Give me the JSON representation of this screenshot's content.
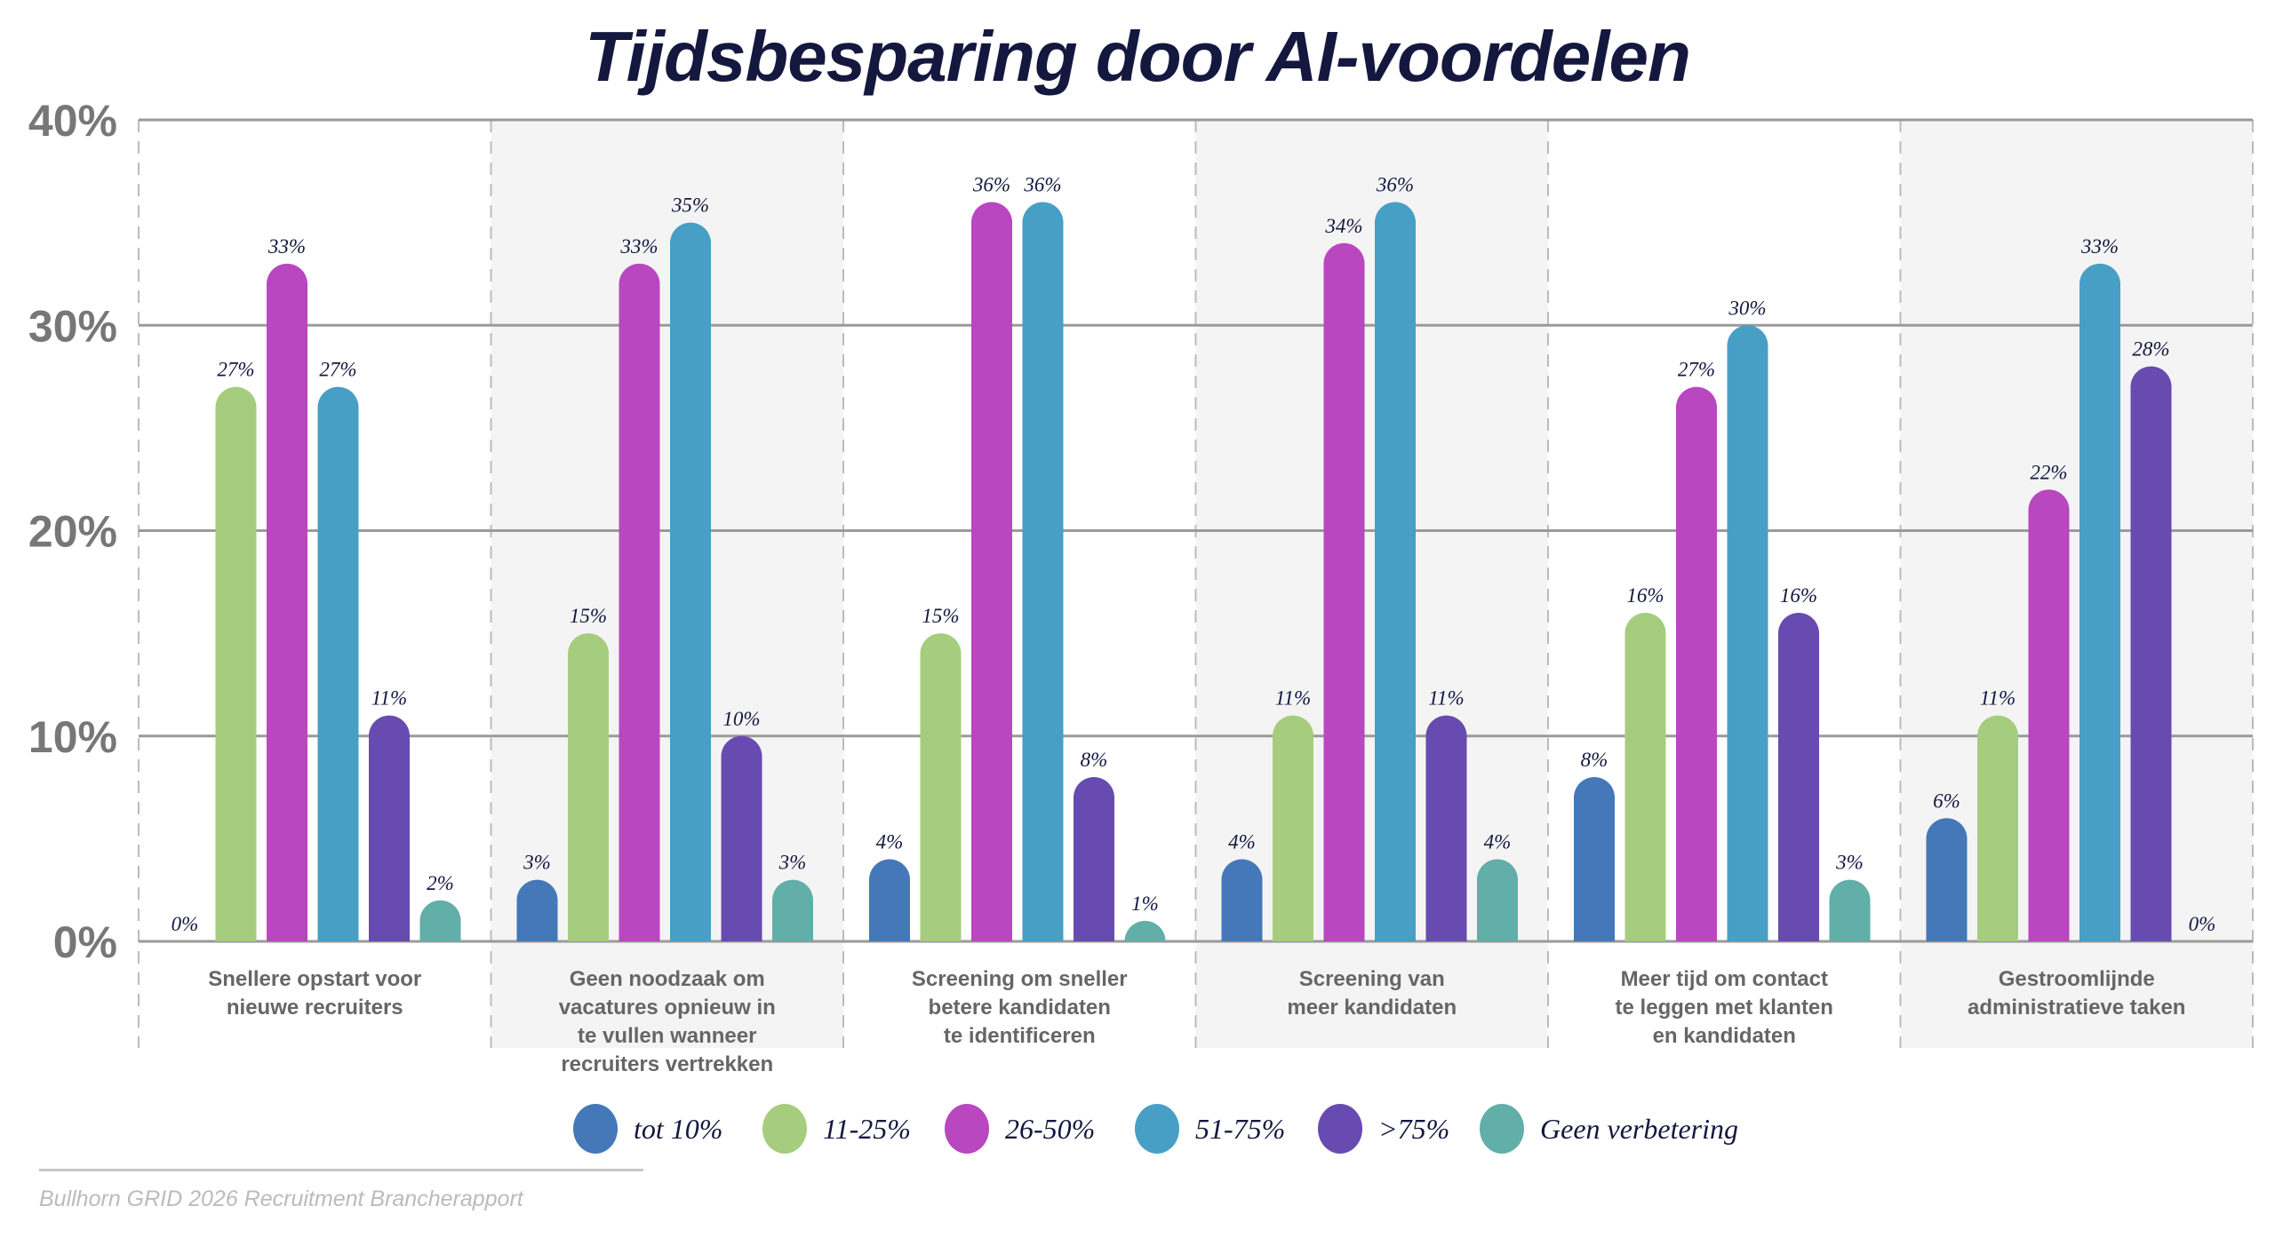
{
  "chart_data": {
    "type": "bar",
    "title": "Tijdsbesparing door AI-voordelen",
    "xlabel": "",
    "ylabel": "",
    "ylim": [
      0,
      40
    ],
    "yticks": [
      "0%",
      "10%",
      "20%",
      "30%",
      "40%"
    ],
    "ytick_values": [
      0,
      10,
      20,
      30,
      40
    ],
    "grid": true,
    "legend_position": "bottom",
    "categories": [
      [
        "Snellere opstart voor",
        "nieuwe recruiters"
      ],
      [
        "Geen noodzaak om",
        "vacatures opnieuw in",
        "te vullen wanneer",
        "recruiters vertrekken"
      ],
      [
        "Screening om sneller",
        "betere kandidaten",
        "te identificeren"
      ],
      [
        "Screening van",
        "meer kandidaten"
      ],
      [
        "Meer tijd om contact",
        "te leggen met klanten",
        "en kandidaten"
      ],
      [
        "Gestroomlijnde",
        "administratieve taken"
      ]
    ],
    "series": [
      {
        "name": "tot 10%",
        "color": "#4478b8",
        "values": [
          0,
          3,
          4,
          4,
          8,
          6
        ]
      },
      {
        "name": "11-25%",
        "color": "#a6cd7d",
        "values": [
          27,
          15,
          15,
          11,
          16,
          11
        ]
      },
      {
        "name": "26-50%",
        "color": "#b847c0",
        "values": [
          33,
          33,
          36,
          34,
          27,
          22
        ]
      },
      {
        "name": "51-75%",
        "color": "#479fc5",
        "values": [
          27,
          35,
          36,
          36,
          30,
          33
        ]
      },
      {
        "name": ">75%",
        "color": "#674bb0",
        "values": [
          11,
          10,
          8,
          11,
          16,
          28
        ]
      },
      {
        "name": "Geen verbetering",
        "color": "#62aea8",
        "values": [
          2,
          3,
          1,
          4,
          3,
          0
        ]
      }
    ],
    "value_suffix": "%"
  },
  "footer": "Bullhorn GRID 2026 Recruitment Brancherapport"
}
